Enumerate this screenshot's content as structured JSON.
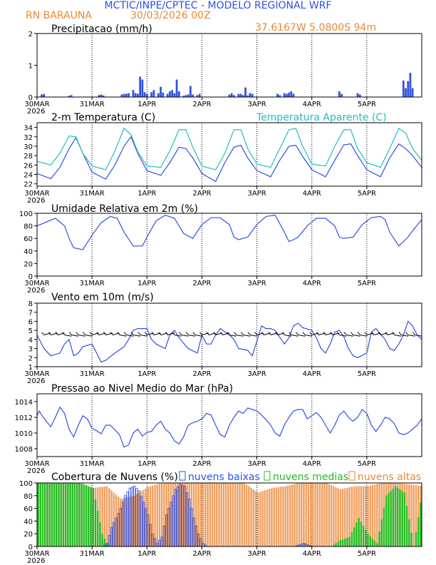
{
  "header": {
    "line1": "MCTIC/INPE/CPTEC - MODELO REGIONAL WRF",
    "station": "RN BARAUNA",
    "run": "30/03/2026 00Z",
    "coords": "37.6167W 5.0800S 94m"
  },
  "colors": {
    "blue": "#3050e0",
    "orange": "#e88a2e",
    "cyan": "#20c0c0",
    "green": "#22bb22",
    "nuvens_orange": "#f0a060"
  },
  "x_axis": {
    "ticks": [
      "30MAR",
      "31MAR",
      "1APR",
      "2APR",
      "3APR",
      "4APR",
      "5APR"
    ],
    "year": "2026",
    "hours_total": 168
  },
  "chart_data": [
    {
      "id": "precip",
      "type": "bar",
      "title": "Precipitacao (mm/h)",
      "ylim": [
        0,
        2
      ],
      "yticks": [
        "0",
        "1",
        "2"
      ],
      "x_hours": [
        2,
        3,
        14,
        15,
        27,
        28,
        29,
        37,
        38,
        39,
        40,
        42,
        43,
        44,
        45,
        46,
        47,
        48,
        50,
        51,
        53,
        54,
        55,
        57,
        58,
        59,
        60,
        61,
        62,
        64,
        65,
        66,
        67,
        68,
        70,
        71,
        84,
        85,
        86,
        88,
        89,
        90,
        91,
        92,
        93,
        94,
        105,
        106,
        108,
        109,
        110,
        111,
        112,
        132,
        133,
        140,
        141,
        160,
        161,
        162,
        163,
        164
      ],
      "values": [
        0.08,
        0.1,
        0.04,
        0.06,
        0.06,
        0.08,
        0.05,
        0.08,
        0.1,
        0.1,
        0.12,
        0.22,
        0.12,
        0.1,
        0.64,
        0.55,
        0.15,
        0.1,
        0.15,
        0.22,
        0.12,
        0.32,
        0.14,
        0.1,
        0.18,
        0.22,
        0.12,
        0.55,
        0.18,
        0.04,
        0.06,
        0.08,
        0.35,
        0.08,
        0.06,
        0.1,
        0.08,
        0.12,
        0.06,
        0.1,
        0.1,
        0.06,
        0.3,
        0.05,
        0.12,
        0.1,
        0.1,
        0.06,
        0.12,
        0.1,
        0.14,
        0.18,
        0.1,
        0.18,
        0.1,
        0.12,
        0.08,
        0.52,
        0.28,
        0.5,
        0.76,
        0.28
      ]
    },
    {
      "id": "temp",
      "type": "line",
      "title": "2-m Temperatura (C)",
      "legend_apparent": "Temperatura Aparente (C)",
      "ylim": [
        21.5,
        35
      ],
      "yticks": [
        "22",
        "24",
        "26",
        "28",
        "30",
        "32",
        "34"
      ],
      "series": [
        {
          "name": "Temperatura",
          "x": [
            0,
            6,
            10,
            14,
            17,
            20,
            24,
            30,
            34,
            38,
            41,
            44,
            48,
            54,
            58,
            62,
            65,
            68,
            72,
            78,
            82,
            86,
            89,
            92,
            96,
            102,
            106,
            110,
            113,
            116,
            120,
            126,
            130,
            134,
            137,
            140,
            144,
            150,
            154,
            158,
            161,
            164,
            168
          ],
          "values": [
            24.2,
            23.1,
            25.5,
            29.5,
            31.8,
            28.5,
            24.5,
            23.0,
            26.0,
            30.0,
            32.0,
            28.5,
            24.8,
            23.8,
            26.5,
            29.8,
            29.5,
            27.5,
            24.2,
            22.5,
            26.5,
            29.8,
            30.2,
            27.5,
            24.8,
            23.5,
            27.0,
            30.0,
            30.2,
            27.8,
            25.0,
            23.5,
            27.0,
            30.3,
            30.5,
            28.0,
            25.0,
            23.5,
            27.5,
            30.5,
            29.5,
            28.0,
            25.5
          ]
        },
        {
          "name": "Temperatura Aparente (C)",
          "x": [
            0,
            6,
            10,
            14,
            17,
            20,
            24,
            30,
            34,
            38,
            41,
            44,
            48,
            54,
            58,
            62,
            65,
            68,
            72,
            78,
            82,
            86,
            89,
            92,
            96,
            102,
            106,
            110,
            113,
            116,
            120,
            126,
            130,
            134,
            137,
            140,
            144,
            150,
            154,
            158,
            161,
            164,
            168
          ],
          "values": [
            26.8,
            26.0,
            28.5,
            32.2,
            32.0,
            28.5,
            25.8,
            25.0,
            29.0,
            33.8,
            32.5,
            28.8,
            25.8,
            25.5,
            29.0,
            33.5,
            33.5,
            29.8,
            25.8,
            25.0,
            28.5,
            33.5,
            33.5,
            29.5,
            26.2,
            25.5,
            29.5,
            33.5,
            33.8,
            30.0,
            26.2,
            25.8,
            30.0,
            33.5,
            33.5,
            29.5,
            26.5,
            25.5,
            29.5,
            33.8,
            32.8,
            29.5,
            27.0
          ]
        }
      ]
    },
    {
      "id": "rh",
      "type": "line",
      "title": "Umidade Relativa em 2m (%)",
      "ylim": [
        0,
        100
      ],
      "yticks": [
        "0",
        "20",
        "40",
        "60",
        "80",
        "100"
      ],
      "series": [
        {
          "name": "Umidade",
          "x": [
            0,
            4,
            8,
            12,
            14,
            16,
            20,
            24,
            28,
            32,
            35,
            38,
            42,
            46,
            48,
            52,
            56,
            60,
            64,
            68,
            72,
            76,
            80,
            84,
            86,
            88,
            92,
            96,
            100,
            104,
            108,
            110,
            112,
            114,
            118,
            122,
            126,
            130,
            132,
            134,
            138,
            142,
            146,
            150,
            152,
            154,
            158,
            162,
            164,
            168
          ],
          "values": [
            80,
            86,
            92,
            80,
            60,
            45,
            42,
            65,
            85,
            95,
            92,
            70,
            48,
            48,
            62,
            88,
            97,
            92,
            68,
            60,
            82,
            93,
            93,
            82,
            62,
            58,
            62,
            82,
            95,
            97,
            70,
            55,
            58,
            62,
            80,
            92,
            92,
            80,
            62,
            60,
            62,
            82,
            93,
            95,
            90,
            70,
            48,
            62,
            72,
            90
          ]
        }
      ]
    },
    {
      "id": "wind",
      "type": "line",
      "title": "Vento em 10m (m/s)",
      "ylim": [
        1,
        8
      ],
      "yticks": [
        "1",
        "2",
        "3",
        "4",
        "5",
        "6",
        "7",
        "8"
      ],
      "series": [
        {
          "name": "Vento",
          "x": [
            0,
            3,
            6,
            10,
            12,
            14,
            16,
            18,
            20,
            24,
            26,
            28,
            30,
            34,
            38,
            40,
            42,
            44,
            48,
            50,
            52,
            56,
            58,
            60,
            62,
            66,
            70,
            72,
            74,
            76,
            78,
            80,
            84,
            86,
            88,
            92,
            94,
            96,
            98,
            100,
            102,
            104,
            108,
            110,
            112,
            114,
            116,
            120,
            122,
            124,
            126,
            128,
            130,
            132,
            134,
            136,
            138,
            140,
            144,
            146,
            148,
            150,
            152,
            154,
            156,
            158,
            160,
            162,
            164,
            166,
            168
          ],
          "values": [
            4.5,
            3.0,
            2.2,
            2.5,
            3.5,
            4.0,
            2.2,
            2.5,
            3.2,
            3.5,
            2.5,
            1.5,
            1.7,
            2.5,
            3.2,
            4.0,
            5.0,
            5.2,
            5.2,
            4.0,
            3.5,
            3.0,
            4.5,
            5.0,
            4.2,
            3.0,
            2.5,
            4.5,
            3.5,
            3.5,
            4.5,
            5.2,
            4.5,
            4.0,
            3.0,
            2.8,
            2.2,
            3.8,
            5.5,
            5.2,
            5.2,
            5.0,
            3.5,
            4.2,
            5.5,
            5.8,
            5.3,
            5.0,
            4.2,
            3.0,
            2.5,
            3.5,
            4.8,
            5.0,
            4.3,
            3.0,
            2.2,
            2.0,
            2.5,
            4.8,
            5.2,
            4.6,
            4.0,
            3.0,
            2.8,
            3.5,
            4.5,
            6.0,
            5.5,
            4.5,
            4.0
          ]
        }
      ]
    },
    {
      "id": "pressure",
      "type": "line",
      "title": "Pressao ao Nivel Medio do Mar (hPa)",
      "ylim": [
        1007,
        1015
      ],
      "yticks": [
        "1008",
        "1010",
        "1012",
        "1014"
      ],
      "series": [
        {
          "name": "Pressao",
          "x": [
            0,
            1,
            2,
            4,
            6,
            8,
            10,
            12,
            14,
            16,
            18,
            20,
            22,
            24,
            26,
            28,
            30,
            32,
            34,
            36,
            38,
            40,
            42,
            44,
            46,
            48,
            50,
            52,
            54,
            56,
            58,
            60,
            62,
            64,
            66,
            68,
            70,
            72,
            74,
            76,
            78,
            80,
            82,
            84,
            86,
            88,
            90,
            92,
            94,
            96,
            98,
            100,
            102,
            104,
            106,
            108,
            110,
            112,
            114,
            116,
            118,
            120,
            122,
            124,
            126,
            128,
            130,
            132,
            134,
            136,
            138,
            140,
            142,
            144,
            146,
            148,
            150,
            152,
            154,
            156,
            158,
            160,
            162,
            164,
            166,
            168
          ],
          "values": [
            1012.2,
            1012.8,
            1012.3,
            1011.5,
            1010.8,
            1012.0,
            1013.3,
            1012.5,
            1010.5,
            1009.5,
            1011.0,
            1012.2,
            1011.8,
            1010.6,
            1010.3,
            1009.9,
            1011.0,
            1011.0,
            1010.4,
            1009.8,
            1008.2,
            1008.5,
            1010.0,
            1010.5,
            1009.6,
            1010.1,
            1010.2,
            1011.0,
            1011.5,
            1010.5,
            1010.0,
            1009.0,
            1008.6,
            1009.5,
            1011.0,
            1011.3,
            1011.5,
            1011.8,
            1012.5,
            1012.3,
            1011.0,
            1009.8,
            1009.5,
            1011.0,
            1012.0,
            1012.8,
            1012.5,
            1013.2,
            1013.0,
            1012.8,
            1012.3,
            1011.7,
            1011.0,
            1010.0,
            1009.6,
            1011.0,
            1012.0,
            1012.8,
            1013.0,
            1013.0,
            1011.8,
            1012.2,
            1012.6,
            1012.0,
            1011.0,
            1010.0,
            1011.0,
            1012.3,
            1012.8,
            1012.0,
            1011.5,
            1012.0,
            1013.0,
            1012.5,
            1011.0,
            1010.2,
            1011.0,
            1012.0,
            1011.8,
            1011.2,
            1010.0,
            1009.8,
            1010.0,
            1010.5,
            1011.0,
            1011.8
          ]
        }
      ]
    },
    {
      "id": "clouds",
      "type": "bar",
      "title": "Cobertura de Nuvens (%)",
      "legend": [
        "nuvens baixas",
        "nuvens medias",
        "nuvens altas"
      ],
      "ylim": [
        0,
        100
      ],
      "yticks": [
        "0",
        "20",
        "40",
        "60",
        "80",
        "100"
      ],
      "series": [
        {
          "name": "nuvens altas",
          "x": [
            0,
            6,
            12,
            18,
            24,
            30,
            36,
            42,
            48,
            54,
            60,
            66,
            72,
            78,
            84,
            90,
            96,
            102,
            108,
            114,
            120,
            126,
            132,
            138,
            144,
            150,
            156,
            162,
            168
          ],
          "values": [
            100,
            98,
            100,
            98,
            92,
            95,
            75,
            80,
            94,
            100,
            100,
            100,
            100,
            100,
            100,
            100,
            85,
            92,
            95,
            100,
            100,
            100,
            90,
            95,
            95,
            100,
            100,
            98,
            95
          ]
        },
        {
          "name": "nuvens medias",
          "x": [
            0,
            6,
            12,
            18,
            20,
            24,
            28,
            30,
            32,
            36,
            40,
            44,
            48,
            52,
            56,
            60,
            64,
            68,
            72,
            76,
            80,
            84,
            88,
            92,
            96,
            100,
            104,
            108,
            112,
            116,
            120,
            124,
            128,
            132,
            136,
            140,
            144,
            148,
            152,
            156,
            160,
            164,
            168
          ],
          "values": [
            100,
            100,
            100,
            100,
            98,
            92,
            20,
            5,
            0,
            0,
            0,
            0,
            0,
            0,
            0,
            0,
            0,
            0,
            0,
            0,
            0,
            0,
            0,
            0,
            0,
            0,
            0,
            0,
            0,
            0,
            0,
            0,
            0,
            10,
            15,
            45,
            20,
            5,
            80,
            95,
            85,
            0,
            92
          ]
        },
        {
          "name": "nuvens baixas",
          "x": [
            0,
            12,
            24,
            28,
            30,
            32,
            34,
            36,
            38,
            40,
            42,
            44,
            46,
            48,
            50,
            52,
            54,
            56,
            58,
            60,
            62,
            64,
            66,
            68,
            70,
            72,
            74,
            76,
            78,
            80,
            84,
            88,
            92,
            96,
            100,
            104,
            108,
            112,
            116,
            120,
            124,
            128,
            132,
            136,
            140,
            144,
            148,
            152,
            156,
            160,
            164,
            168
          ],
          "values": [
            0,
            0,
            0,
            0,
            5,
            30,
            45,
            60,
            80,
            92,
            95,
            88,
            70,
            50,
            20,
            5,
            15,
            50,
            70,
            90,
            98,
            95,
            75,
            45,
            20,
            5,
            0,
            0,
            0,
            0,
            0,
            0,
            0,
            0,
            0,
            0,
            0,
            0,
            5,
            0,
            0,
            0,
            0,
            0,
            0,
            0,
            0,
            0,
            0,
            0,
            0,
            0
          ]
        }
      ]
    }
  ]
}
